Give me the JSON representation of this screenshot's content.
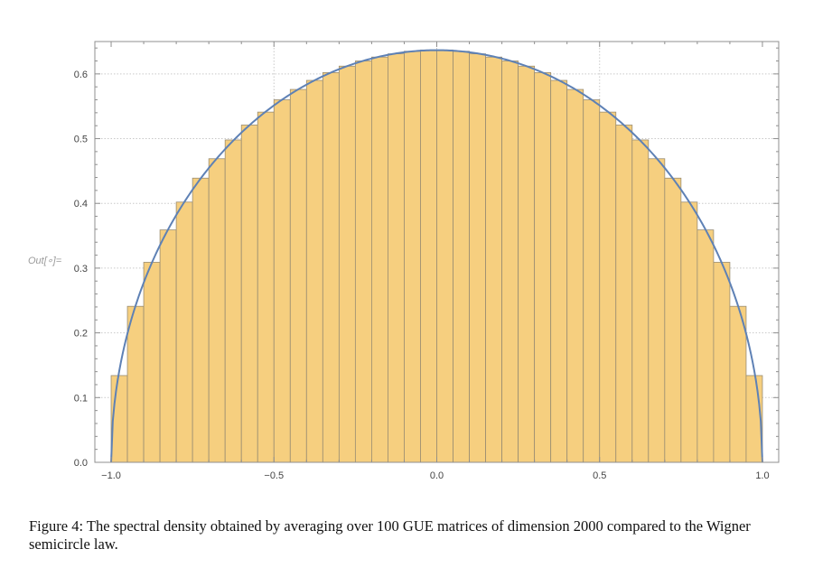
{
  "out_label": "Out[∘]=",
  "caption": "Figure 4:  The spectral density obtained by averaging over 100 GUE matrices of dimension 2000 compared to the Wigner semicircle law.",
  "colors": {
    "bar_fill": "#f6cf7f",
    "bar_stroke": "#9a8d72",
    "curve": "#5e81b5",
    "grid": "#c9c9c9",
    "axis": "#8f8f8f"
  },
  "chart_data": {
    "type": "bar",
    "overlay": "line",
    "xlim": [
      -1.05,
      1.05
    ],
    "ylim": [
      0,
      0.65
    ],
    "xticks": [
      -1.0,
      -0.5,
      0.0,
      0.5,
      1.0
    ],
    "xtick_labels": [
      "−1.0",
      "−0.5",
      "0.0",
      "0.5",
      "1.0"
    ],
    "yticks": [
      0.0,
      0.1,
      0.2,
      0.3,
      0.4,
      0.5,
      0.6
    ],
    "ytick_labels": [
      "0.0",
      "0.1",
      "0.2",
      "0.3",
      "0.4",
      "0.5",
      "0.6"
    ],
    "grid": true,
    "bin_width": 0.05,
    "bin_starts": [
      -1.0,
      -0.95,
      -0.9,
      -0.85,
      -0.8,
      -0.75,
      -0.7,
      -0.65,
      -0.6,
      -0.55,
      -0.5,
      -0.45,
      -0.4,
      -0.35,
      -0.3,
      -0.25,
      -0.2,
      -0.15,
      -0.1,
      -0.05,
      0.0,
      0.05,
      0.1,
      0.15,
      0.2,
      0.25,
      0.3,
      0.35,
      0.4,
      0.45,
      0.5,
      0.55,
      0.6,
      0.65,
      0.7,
      0.75,
      0.8,
      0.85,
      0.9,
      0.95
    ],
    "values": [
      0.134,
      0.241,
      0.309,
      0.359,
      0.402,
      0.439,
      0.469,
      0.498,
      0.521,
      0.541,
      0.56,
      0.576,
      0.59,
      0.602,
      0.612,
      0.62,
      0.626,
      0.631,
      0.635,
      0.637,
      0.637,
      0.635,
      0.631,
      0.626,
      0.62,
      0.612,
      0.602,
      0.59,
      0.576,
      0.56,
      0.541,
      0.521,
      0.498,
      0.469,
      0.439,
      0.402,
      0.359,
      0.309,
      0.241,
      0.134
    ],
    "curve": {
      "formula": "(2/pi)*sqrt(1-x^2)",
      "domain": [
        -1,
        1
      ]
    }
  }
}
